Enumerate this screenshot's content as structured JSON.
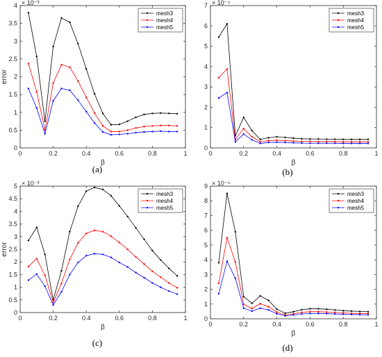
{
  "chart_data": [
    {
      "type": "line",
      "caption": "(a)",
      "xlabel": "β",
      "ylabel": "error",
      "exponent": "× 10⁻³",
      "xlim": [
        0,
        1
      ],
      "ylim": [
        0,
        4
      ],
      "xticks": [
        "0",
        "0.2",
        "0.4",
        "0.6",
        "0.8",
        "1"
      ],
      "yticks": [
        "0",
        "0.5",
        "1",
        "1.5",
        "2",
        "2.5",
        "3",
        "3.5",
        "4"
      ],
      "ytick_values": [
        0,
        0.5,
        1,
        1.5,
        2,
        2.5,
        3,
        3.5,
        4
      ],
      "x": [
        0.05,
        0.1,
        0.15,
        0.2,
        0.25,
        0.3,
        0.35,
        0.4,
        0.45,
        0.5,
        0.55,
        0.6,
        0.65,
        0.7,
        0.75,
        0.8,
        0.85,
        0.9,
        0.95
      ],
      "legend_position": "top-right",
      "series": [
        {
          "name": "mesh3",
          "color": "#000000",
          "values": [
            3.8,
            2.57,
            0.75,
            2.85,
            3.65,
            3.53,
            2.93,
            2.22,
            1.52,
            0.97,
            0.65,
            0.66,
            0.75,
            0.86,
            0.94,
            0.97,
            0.98,
            0.97,
            0.96
          ]
        },
        {
          "name": "mesh4",
          "color": "#ff0000",
          "values": [
            2.37,
            1.58,
            0.51,
            1.82,
            2.34,
            2.27,
            1.88,
            1.42,
            0.98,
            0.62,
            0.46,
            0.46,
            0.5,
            0.56,
            0.6,
            0.62,
            0.63,
            0.63,
            0.62
          ]
        },
        {
          "name": "mesh5",
          "color": "#0000ff",
          "values": [
            1.67,
            1.12,
            0.4,
            1.32,
            1.67,
            1.62,
            1.34,
            1.02,
            0.7,
            0.45,
            0.37,
            0.38,
            0.4,
            0.43,
            0.45,
            0.46,
            0.47,
            0.46,
            0.46
          ]
        }
      ]
    },
    {
      "type": "line",
      "caption": "(b)",
      "xlabel": "β",
      "ylabel": "",
      "exponent": "× 10⁻⁴",
      "xlim": [
        0,
        1
      ],
      "ylim": [
        0,
        7
      ],
      "xticks": [
        "0",
        "0.2",
        "0.4",
        "0.6",
        "0.8",
        "1"
      ],
      "yticks": [
        "0",
        "1",
        "2",
        "3",
        "4",
        "5",
        "6",
        "7"
      ],
      "ytick_values": [
        0,
        1,
        2,
        3,
        4,
        5,
        6,
        7
      ],
      "x": [
        0.05,
        0.1,
        0.15,
        0.2,
        0.25,
        0.3,
        0.35,
        0.4,
        0.45,
        0.5,
        0.55,
        0.6,
        0.65,
        0.7,
        0.75,
        0.8,
        0.85,
        0.9,
        0.95
      ],
      "legend_position": "top-right",
      "series": [
        {
          "name": "mesh3",
          "color": "#000000",
          "values": [
            5.45,
            6.1,
            0.6,
            1.5,
            0.85,
            0.42,
            0.5,
            0.55,
            0.52,
            0.48,
            0.45,
            0.44,
            0.44,
            0.43,
            0.43,
            0.42,
            0.42,
            0.42,
            0.42
          ]
        },
        {
          "name": "mesh4",
          "color": "#ff0000",
          "values": [
            3.45,
            3.88,
            0.42,
            0.95,
            0.55,
            0.3,
            0.36,
            0.38,
            0.36,
            0.34,
            0.32,
            0.32,
            0.31,
            0.31,
            0.31,
            0.3,
            0.3,
            0.3,
            0.3
          ]
        },
        {
          "name": "mesh5",
          "color": "#0000ff",
          "values": [
            2.45,
            2.72,
            0.3,
            0.68,
            0.4,
            0.22,
            0.27,
            0.28,
            0.27,
            0.25,
            0.24,
            0.23,
            0.23,
            0.23,
            0.23,
            0.22,
            0.22,
            0.22,
            0.22
          ]
        }
      ]
    },
    {
      "type": "line",
      "caption": "(c)",
      "xlabel": "β",
      "ylabel": "error",
      "exponent": "× 10⁻³",
      "xlim": [
        0,
        1
      ],
      "ylim": [
        0,
        5
      ],
      "xticks": [
        "0",
        "0.2",
        "0.4",
        "0.6",
        "0.8",
        "1"
      ],
      "yticks": [
        "0",
        "0.5",
        "1",
        "1.5",
        "2",
        "2.5",
        "3",
        "3.5",
        "4",
        "4.5",
        "5"
      ],
      "ytick_values": [
        0,
        0.5,
        1,
        1.5,
        2,
        2.5,
        3,
        3.5,
        4,
        4.5,
        5
      ],
      "x": [
        0.05,
        0.1,
        0.15,
        0.2,
        0.25,
        0.3,
        0.35,
        0.4,
        0.45,
        0.5,
        0.55,
        0.6,
        0.65,
        0.7,
        0.75,
        0.8,
        0.85,
        0.9,
        0.95
      ],
      "legend_position": "top-right",
      "series": [
        {
          "name": "mesh3",
          "color": "#000000",
          "values": [
            2.85,
            3.37,
            2.3,
            0.5,
            1.65,
            3.2,
            4.2,
            4.8,
            4.95,
            4.87,
            4.62,
            4.22,
            3.8,
            3.35,
            2.9,
            2.45,
            2.08,
            1.75,
            1.45
          ]
        },
        {
          "name": "mesh4",
          "color": "#ff0000",
          "values": [
            1.82,
            2.13,
            1.47,
            0.4,
            1.15,
            2.1,
            2.75,
            3.13,
            3.25,
            3.2,
            3.02,
            2.77,
            2.5,
            2.2,
            1.92,
            1.63,
            1.4,
            1.17,
            0.98
          ]
        },
        {
          "name": "mesh5",
          "color": "#0000ff",
          "values": [
            1.28,
            1.52,
            1.04,
            0.3,
            0.82,
            1.5,
            1.98,
            2.25,
            2.33,
            2.3,
            2.18,
            1.98,
            1.8,
            1.58,
            1.38,
            1.17,
            1.0,
            0.85,
            0.73
          ]
        }
      ]
    },
    {
      "type": "line",
      "caption": "(d)",
      "xlabel": "β",
      "ylabel": "",
      "exponent": "× 10⁻⁴",
      "xlim": [
        0,
        1
      ],
      "ylim": [
        0,
        9
      ],
      "xticks": [
        "0",
        "0.2",
        "0.4",
        "0.6",
        "0.8",
        "1"
      ],
      "yticks": [
        "0",
        "1",
        "2",
        "3",
        "4",
        "5",
        "6",
        "7",
        "8",
        "9"
      ],
      "ytick_values": [
        0,
        1,
        2,
        3,
        4,
        5,
        6,
        7,
        8,
        9
      ],
      "x": [
        0.05,
        0.1,
        0.15,
        0.2,
        0.25,
        0.3,
        0.35,
        0.4,
        0.45,
        0.5,
        0.55,
        0.6,
        0.65,
        0.7,
        0.75,
        0.8,
        0.85,
        0.9,
        0.95
      ],
      "legend_position": "top-right",
      "series": [
        {
          "name": "mesh3",
          "color": "#000000",
          "values": [
            3.8,
            8.5,
            5.9,
            1.5,
            1.05,
            1.55,
            1.25,
            0.65,
            0.38,
            0.48,
            0.62,
            0.68,
            0.68,
            0.65,
            0.6,
            0.55,
            0.52,
            0.5,
            0.48
          ]
        },
        {
          "name": "mesh4",
          "color": "#ff0000",
          "values": [
            2.4,
            5.5,
            3.85,
            0.98,
            0.7,
            1.02,
            0.82,
            0.45,
            0.26,
            0.34,
            0.44,
            0.48,
            0.48,
            0.46,
            0.43,
            0.4,
            0.37,
            0.36,
            0.35
          ]
        },
        {
          "name": "mesh5",
          "color": "#0000ff",
          "values": [
            1.7,
            3.9,
            2.75,
            0.72,
            0.52,
            0.72,
            0.6,
            0.34,
            0.2,
            0.26,
            0.33,
            0.36,
            0.36,
            0.35,
            0.33,
            0.31,
            0.29,
            0.28,
            0.27
          ]
        }
      ]
    }
  ]
}
